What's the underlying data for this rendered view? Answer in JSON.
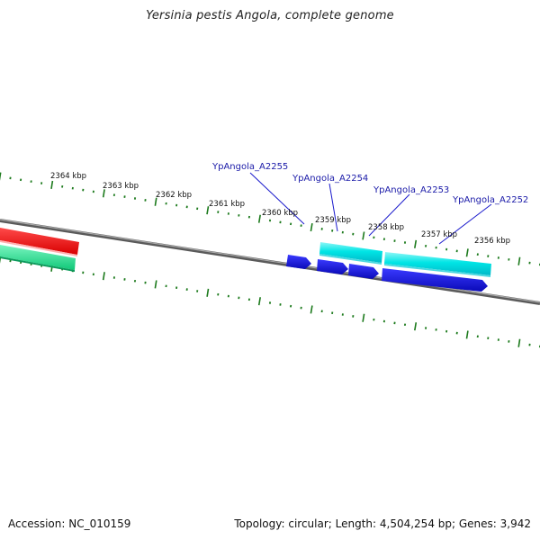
{
  "title": "Yersinia pestis Angola, complete genome",
  "footer": {
    "accession": "Accession: NC_010159",
    "summary": "Topology: circular; Length: 4,504,254 bp; Genes: 3,942"
  },
  "colors": {
    "backbone": "#7a7a7a",
    "ticks": "#1c7a1c",
    "gene_forward": "#00e5e5",
    "gene_reverse": "#1010e0",
    "feature_red": "#ff1a1a",
    "feature_green": "#22e08a",
    "label_text": "#1a1aa8",
    "leader_line": "#1a1acc"
  },
  "ticks": [
    {
      "label": "2364 kbp"
    },
    {
      "label": "2363 kbp"
    },
    {
      "label": "2362 kbp"
    },
    {
      "label": "2361 kbp"
    },
    {
      "label": "2360 kbp"
    },
    {
      "label": "2359 kbp"
    },
    {
      "label": "2358 kbp"
    },
    {
      "label": "2357 kbp"
    },
    {
      "label": "2356 kbp"
    }
  ],
  "genes": [
    {
      "label": "YpAngola_A2255"
    },
    {
      "label": "YpAngola_A2254"
    },
    {
      "label": "YpAngola_A2253"
    },
    {
      "label": "YpAngola_A2252"
    }
  ]
}
